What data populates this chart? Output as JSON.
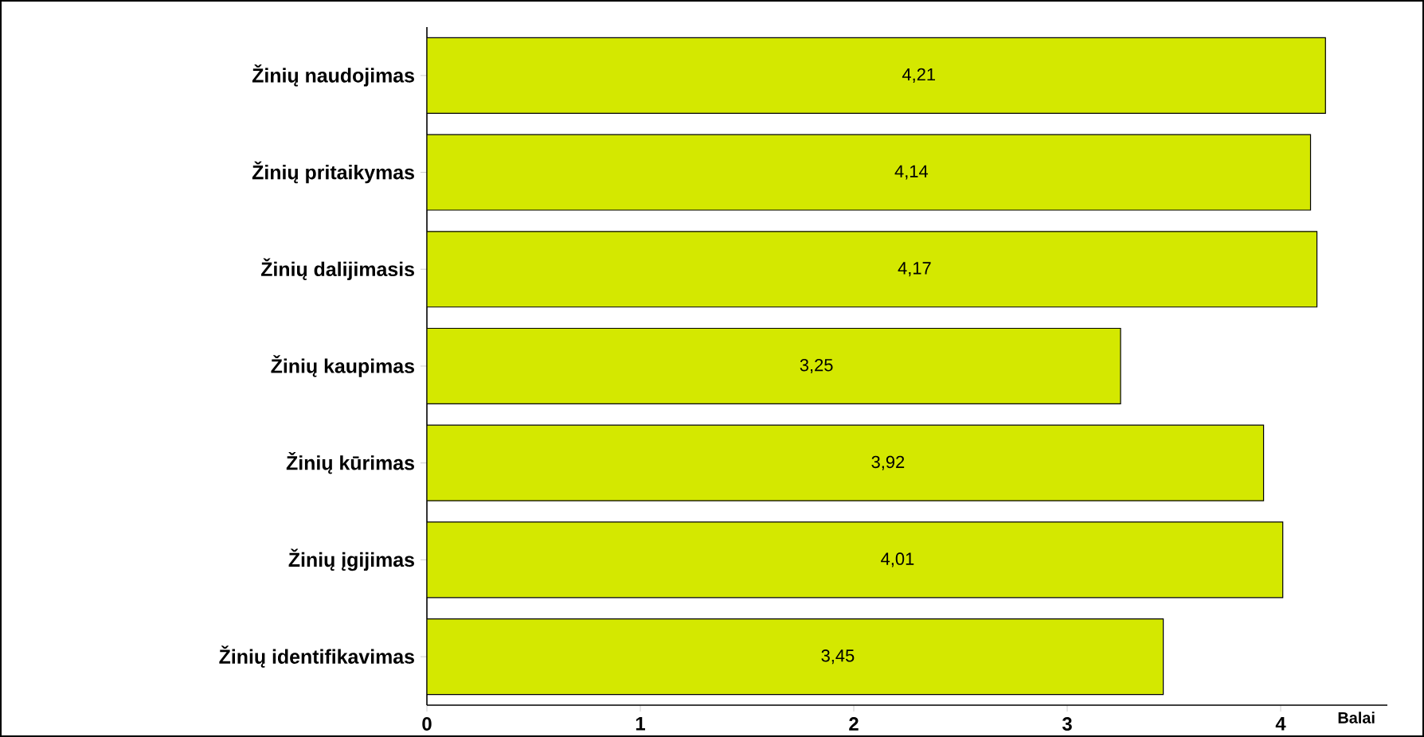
{
  "chart_data": {
    "type": "bar",
    "orientation": "horizontal",
    "xlabel": "Balai",
    "categories": [
      "Žinių naudojimas",
      "Žinių pritaikymas",
      "Žinių dalijimasis",
      "Žinių kaupimas",
      "Žinių kūrimas",
      "Žinių įgijimas",
      "Žinių identifikavimas"
    ],
    "values": [
      4.21,
      4.14,
      4.17,
      3.25,
      3.92,
      4.01,
      3.45
    ],
    "value_labels": [
      "4,21",
      "4,14",
      "4,17",
      "3,25",
      "3,92",
      "4,01",
      "3,45"
    ],
    "color": "#d4e800",
    "xlim": [
      0,
      4.5
    ],
    "xticks": [
      0,
      1,
      2,
      3,
      4
    ],
    "grid": false
  }
}
